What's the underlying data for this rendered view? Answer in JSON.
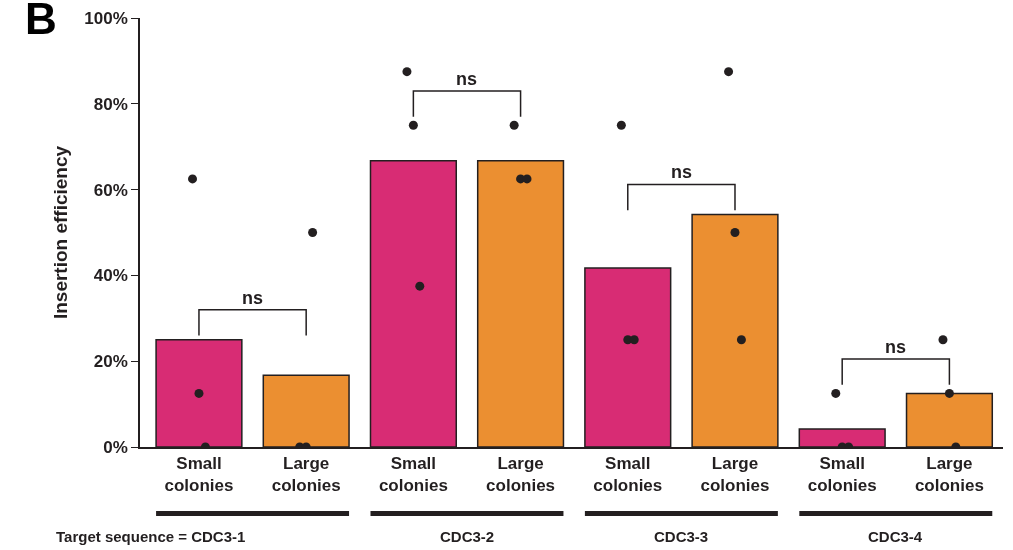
{
  "chart_data": {
    "type": "bar",
    "ylabel": "Insertion efficiency",
    "categories": [
      "Small colonies",
      "Large colonies",
      "Small colonies",
      "Large colonies",
      "Small colonies",
      "Large colonies",
      "Small colonies",
      "Large colonies"
    ],
    "series": [
      {
        "colors": [
          "#d82c74",
          "#eb8f31",
          "#d82c74",
          "#eb8f31",
          "#d82c74",
          "#eb8f31",
          "#d82c74",
          "#eb8f31"
        ],
        "values": [
          25,
          16.7,
          66.7,
          66.7,
          41.7,
          54.2,
          4.2,
          12.5
        ]
      },
      {
        "type": "scatter",
        "color": "#231f20",
        "values": [
          62.5,
          0,
          87.5,
          75,
          75,
          87.5,
          12.5,
          25
        ]
      },
      {
        "type": "scatter",
        "color": "#231f20",
        "values": [
          12.5,
          0,
          75,
          62.5,
          25,
          50,
          0,
          12.5
        ]
      },
      {
        "type": "scatter",
        "color": "#231f20",
        "values": [
          0,
          50,
          37.5,
          62.5,
          25,
          25,
          0,
          0
        ]
      }
    ],
    "ylim": [
      0,
      100
    ],
    "yticks": [
      {
        "value": 0,
        "label": "0%"
      },
      {
        "value": 20,
        "label": "20%"
      },
      {
        "value": 40,
        "label": "40%"
      },
      {
        "value": 60,
        "label": "60%"
      },
      {
        "value": 80,
        "label": "80%"
      },
      {
        "value": 100,
        "label": "100%"
      }
    ],
    "grid": false,
    "marker": "circle",
    "annotations": [
      "B",
      "Target sequence = CDC3-1",
      "CDC3-2",
      "CDC3-3",
      "CDC3-4",
      "ns",
      "ns",
      "ns",
      "ns"
    ]
  }
}
